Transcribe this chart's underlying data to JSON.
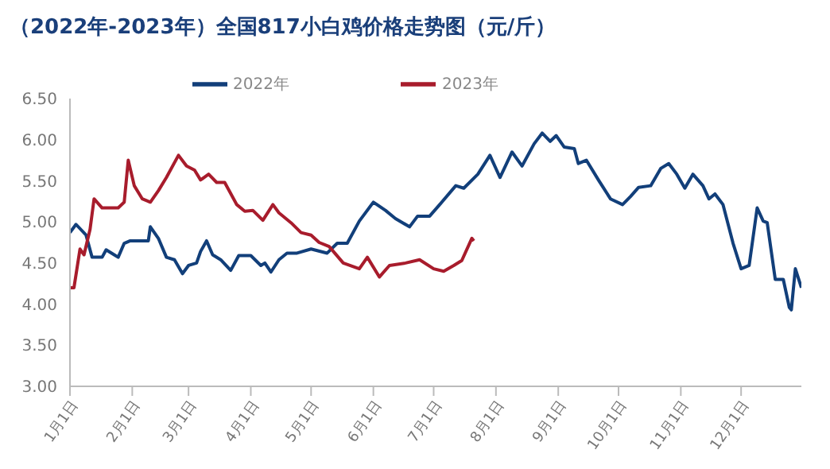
{
  "chart_data": {
    "type": "line",
    "title": "（2022年-2023年）全国817小白鸡价格走势图（元/斤）",
    "xlim": [
      "--01-01",
      "--12-31"
    ],
    "xticks": [
      {
        "value": "--01-01",
        "label": "1月1日"
      },
      {
        "value": "--02-01",
        "label": "2月1日"
      },
      {
        "value": "--03-01",
        "label": "3月1日"
      },
      {
        "value": "--04-01",
        "label": "4月1日"
      },
      {
        "value": "--05-01",
        "label": "5月1日"
      },
      {
        "value": "--06-01",
        "label": "6月1日"
      },
      {
        "value": "--07-01",
        "label": "7月1日"
      },
      {
        "value": "--08-01",
        "label": "8月1日"
      },
      {
        "value": "--09-01",
        "label": "9月1日"
      },
      {
        "value": "--10-01",
        "label": "10月1日"
      },
      {
        "value": "--11-01",
        "label": "11月1日"
      },
      {
        "value": "--12-01",
        "label": "12月1日"
      }
    ],
    "ylim": [
      3,
      6.5
    ],
    "yticks": [
      {
        "value": 3,
        "label": "3.00"
      },
      {
        "value": 3.5,
        "label": "3.50"
      },
      {
        "value": 4,
        "label": "4.00"
      },
      {
        "value": 4.5,
        "label": "4.50"
      },
      {
        "value": 5,
        "label": "5.00"
      },
      {
        "value": 5.5,
        "label": "5.50"
      },
      {
        "value": 6,
        "label": "6.00"
      },
      {
        "value": 6.5,
        "label": "6.50"
      }
    ],
    "grid": false,
    "legend": "top",
    "marker": "none",
    "line_style": "solid",
    "series": [
      {
        "name": "2022年",
        "color": "#123f7a",
        "x": [
          "--01-01",
          "--01-04",
          "--01-09",
          "--01-12",
          "--01-17",
          "--01-19",
          "--01-23",
          "--01-25",
          "--01-28",
          "--01-31",
          "--02-09",
          "--02-10",
          "--02-14",
          "--02-18",
          "--02-22",
          "--02-26",
          "--03-01",
          "--03-05",
          "--03-07",
          "--03-10",
          "--03-13",
          "--03-17",
          "--03-22",
          "--03-26",
          "--04-01",
          "--04-06",
          "--04-08",
          "--04-11",
          "--04-15",
          "--04-19",
          "--04-24",
          "--05-01",
          "--05-09",
          "--05-14",
          "--05-19",
          "--05-25",
          "--06-01",
          "--06-07",
          "--06-12",
          "--06-19",
          "--06-23",
          "--06-29",
          "--07-04",
          "--07-12",
          "--07-16",
          "--07-23",
          "--07-29",
          "--08-03",
          "--08-09",
          "--08-14",
          "--08-20",
          "--08-24",
          "--08-28",
          "--08-31",
          "--09-04",
          "--09-09",
          "--09-11",
          "--09-15",
          "--09-21",
          "--09-27",
          "--10-03",
          "--10-07",
          "--10-11",
          "--10-17",
          "--10-22",
          "--10-26",
          "--10-30",
          "--11-03",
          "--11-07",
          "--11-12",
          "--11-15",
          "--11-18",
          "--11-22",
          "--11-27",
          "--12-01",
          "--12-05",
          "--12-09",
          "--12-12",
          "--12-14",
          "--12-18",
          "--12-22",
          "--12-25",
          "--12-26",
          "--12-28",
          "--12-31"
        ],
        "values": [
          4.87,
          4.97,
          4.84,
          4.57,
          4.57,
          4.66,
          4.6,
          4.57,
          4.74,
          4.77,
          4.77,
          4.94,
          4.8,
          4.57,
          4.54,
          4.37,
          4.47,
          4.5,
          4.64,
          4.77,
          4.6,
          4.54,
          4.41,
          4.59,
          4.59,
          4.47,
          4.5,
          4.39,
          4.54,
          4.62,
          4.62,
          4.67,
          4.62,
          4.74,
          4.74,
          5.01,
          5.24,
          5.14,
          5.04,
          4.94,
          5.07,
          5.07,
          5.21,
          5.44,
          5.41,
          5.58,
          5.81,
          5.54,
          5.85,
          5.68,
          5.95,
          6.08,
          5.98,
          6.05,
          5.91,
          5.89,
          5.71,
          5.75,
          5.51,
          5.28,
          5.21,
          5.31,
          5.42,
          5.44,
          5.65,
          5.71,
          5.58,
          5.41,
          5.58,
          5.44,
          5.28,
          5.34,
          5.21,
          4.74,
          4.43,
          4.47,
          5.17,
          5.01,
          4.99,
          4.3,
          4.3,
          3.96,
          3.93,
          4.43,
          4.2
        ]
      },
      {
        "name": "2023年",
        "color": "#a81c2c",
        "x": [
          "--01-01",
          "--01-03",
          "--01-06",
          "--01-08",
          "--01-11",
          "--01-13",
          "--01-17",
          "--01-25",
          "--01-28",
          "--01-30",
          "--02-02",
          "--02-06",
          "--02-10",
          "--02-14",
          "--02-18",
          "--02-24",
          "--02-28",
          "--03-04",
          "--03-07",
          "--03-11",
          "--03-15",
          "--03-19",
          "--03-25",
          "--03-29",
          "--04-02",
          "--04-07",
          "--04-12",
          "--04-15",
          "--04-21",
          "--04-26",
          "--05-01",
          "--05-05",
          "--05-10",
          "--05-17",
          "--05-25",
          "--05-29",
          "--06-04",
          "--06-09",
          "--06-17",
          "--06-24",
          "--07-01",
          "--07-06",
          "--07-11",
          "--07-15",
          "--07-20",
          "--07-21"
        ],
        "values": [
          4.2,
          4.2,
          4.67,
          4.6,
          4.91,
          5.28,
          5.17,
          5.17,
          5.24,
          5.75,
          5.44,
          5.28,
          5.24,
          5.38,
          5.54,
          5.81,
          5.68,
          5.63,
          5.51,
          5.58,
          5.48,
          5.48,
          5.21,
          5.13,
          5.14,
          5.02,
          5.21,
          5.11,
          4.99,
          4.87,
          4.84,
          4.75,
          4.7,
          4.5,
          4.43,
          4.57,
          4.33,
          4.47,
          4.5,
          4.54,
          4.43,
          4.4,
          4.47,
          4.53,
          4.8,
          4.77
        ]
      }
    ]
  }
}
